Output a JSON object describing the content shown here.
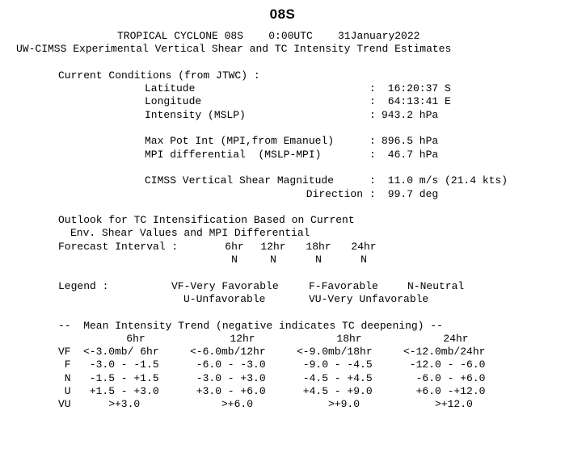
{
  "title": "08S",
  "header": {
    "line1": "TROPICAL CYCLONE 08S    0:00UTC    31January2022",
    "line2": "UW-CIMSS Experimental Vertical Shear and TC Intensity Trend Estimates"
  },
  "current": {
    "heading": "Current Conditions (from JTWC) :",
    "rows": [
      {
        "label": "Latitude",
        "sep": ":",
        "value": " 16:20:37 S"
      },
      {
        "label": "Longitude",
        "sep": ":",
        "value": " 64:13:41 E"
      },
      {
        "label": "Intensity (MSLP)",
        "sep": ":",
        "value": "943.2 hPa"
      }
    ],
    "mpi": [
      {
        "label": "Max Pot Int (MPI,from Emanuel)",
        "sep": ":",
        "value": "896.5 hPa"
      },
      {
        "label": "MPI differential  (MSLP-MPI)",
        "sep": ":",
        "value": " 46.7 hPa"
      }
    ],
    "shear": {
      "label": "CIMSS Vertical Shear Magnitude",
      "sep": ":",
      "value": " 11.0 m/s (21.4 kts)",
      "dir_label": "Direction",
      "dir_value": " 99.7 deg"
    }
  },
  "outlook": {
    "line1": "Outlook for TC Intensification Based on Current",
    "line2": "Env. Shear Values and MPI Differential",
    "interval_label": "Forecast Interval :",
    "intervals": [
      "6hr",
      "12hr",
      "18hr",
      "24hr"
    ],
    "values": [
      "N",
      "N",
      "N",
      "N"
    ]
  },
  "legend": {
    "label": "Legend :",
    "vf": "VF-Very Favorable",
    "f": "F-Favorable",
    "n": "N-Neutral",
    "u": "U-Unfavorable",
    "vu": "VU-Very Unfavorable"
  },
  "trend": {
    "heading": "--  Mean Intensity Trend (negative indicates TC deepening) --",
    "columns": [
      "6hr",
      "12hr",
      "18hr",
      "24hr"
    ],
    "rows": [
      {
        "label": "VF",
        "cells": [
          "<-3.0mb/ 6hr",
          "<-6.0mb/12hr",
          "<-9.0mb/18hr",
          "<-12.0mb/24hr"
        ]
      },
      {
        "label": " F",
        "cells": [
          " -3.0 - -1.5",
          " -6.0 - -3.0",
          " -9.0 - -4.5",
          " -12.0 - -6.0"
        ]
      },
      {
        "label": " N",
        "cells": [
          " -1.5 - +1.5",
          " -3.0 - +3.0",
          " -4.5 - +4.5",
          "  -6.0 - +6.0"
        ]
      },
      {
        "label": " U",
        "cells": [
          " +1.5 - +3.0",
          " +3.0 - +6.0",
          " +4.5 - +9.0",
          "  +6.0 -+12.0"
        ]
      },
      {
        "label": "VU",
        "cells": [
          "    >+3.0",
          "     >+6.0",
          "     >+9.0",
          "     >+12.0"
        ]
      }
    ]
  }
}
